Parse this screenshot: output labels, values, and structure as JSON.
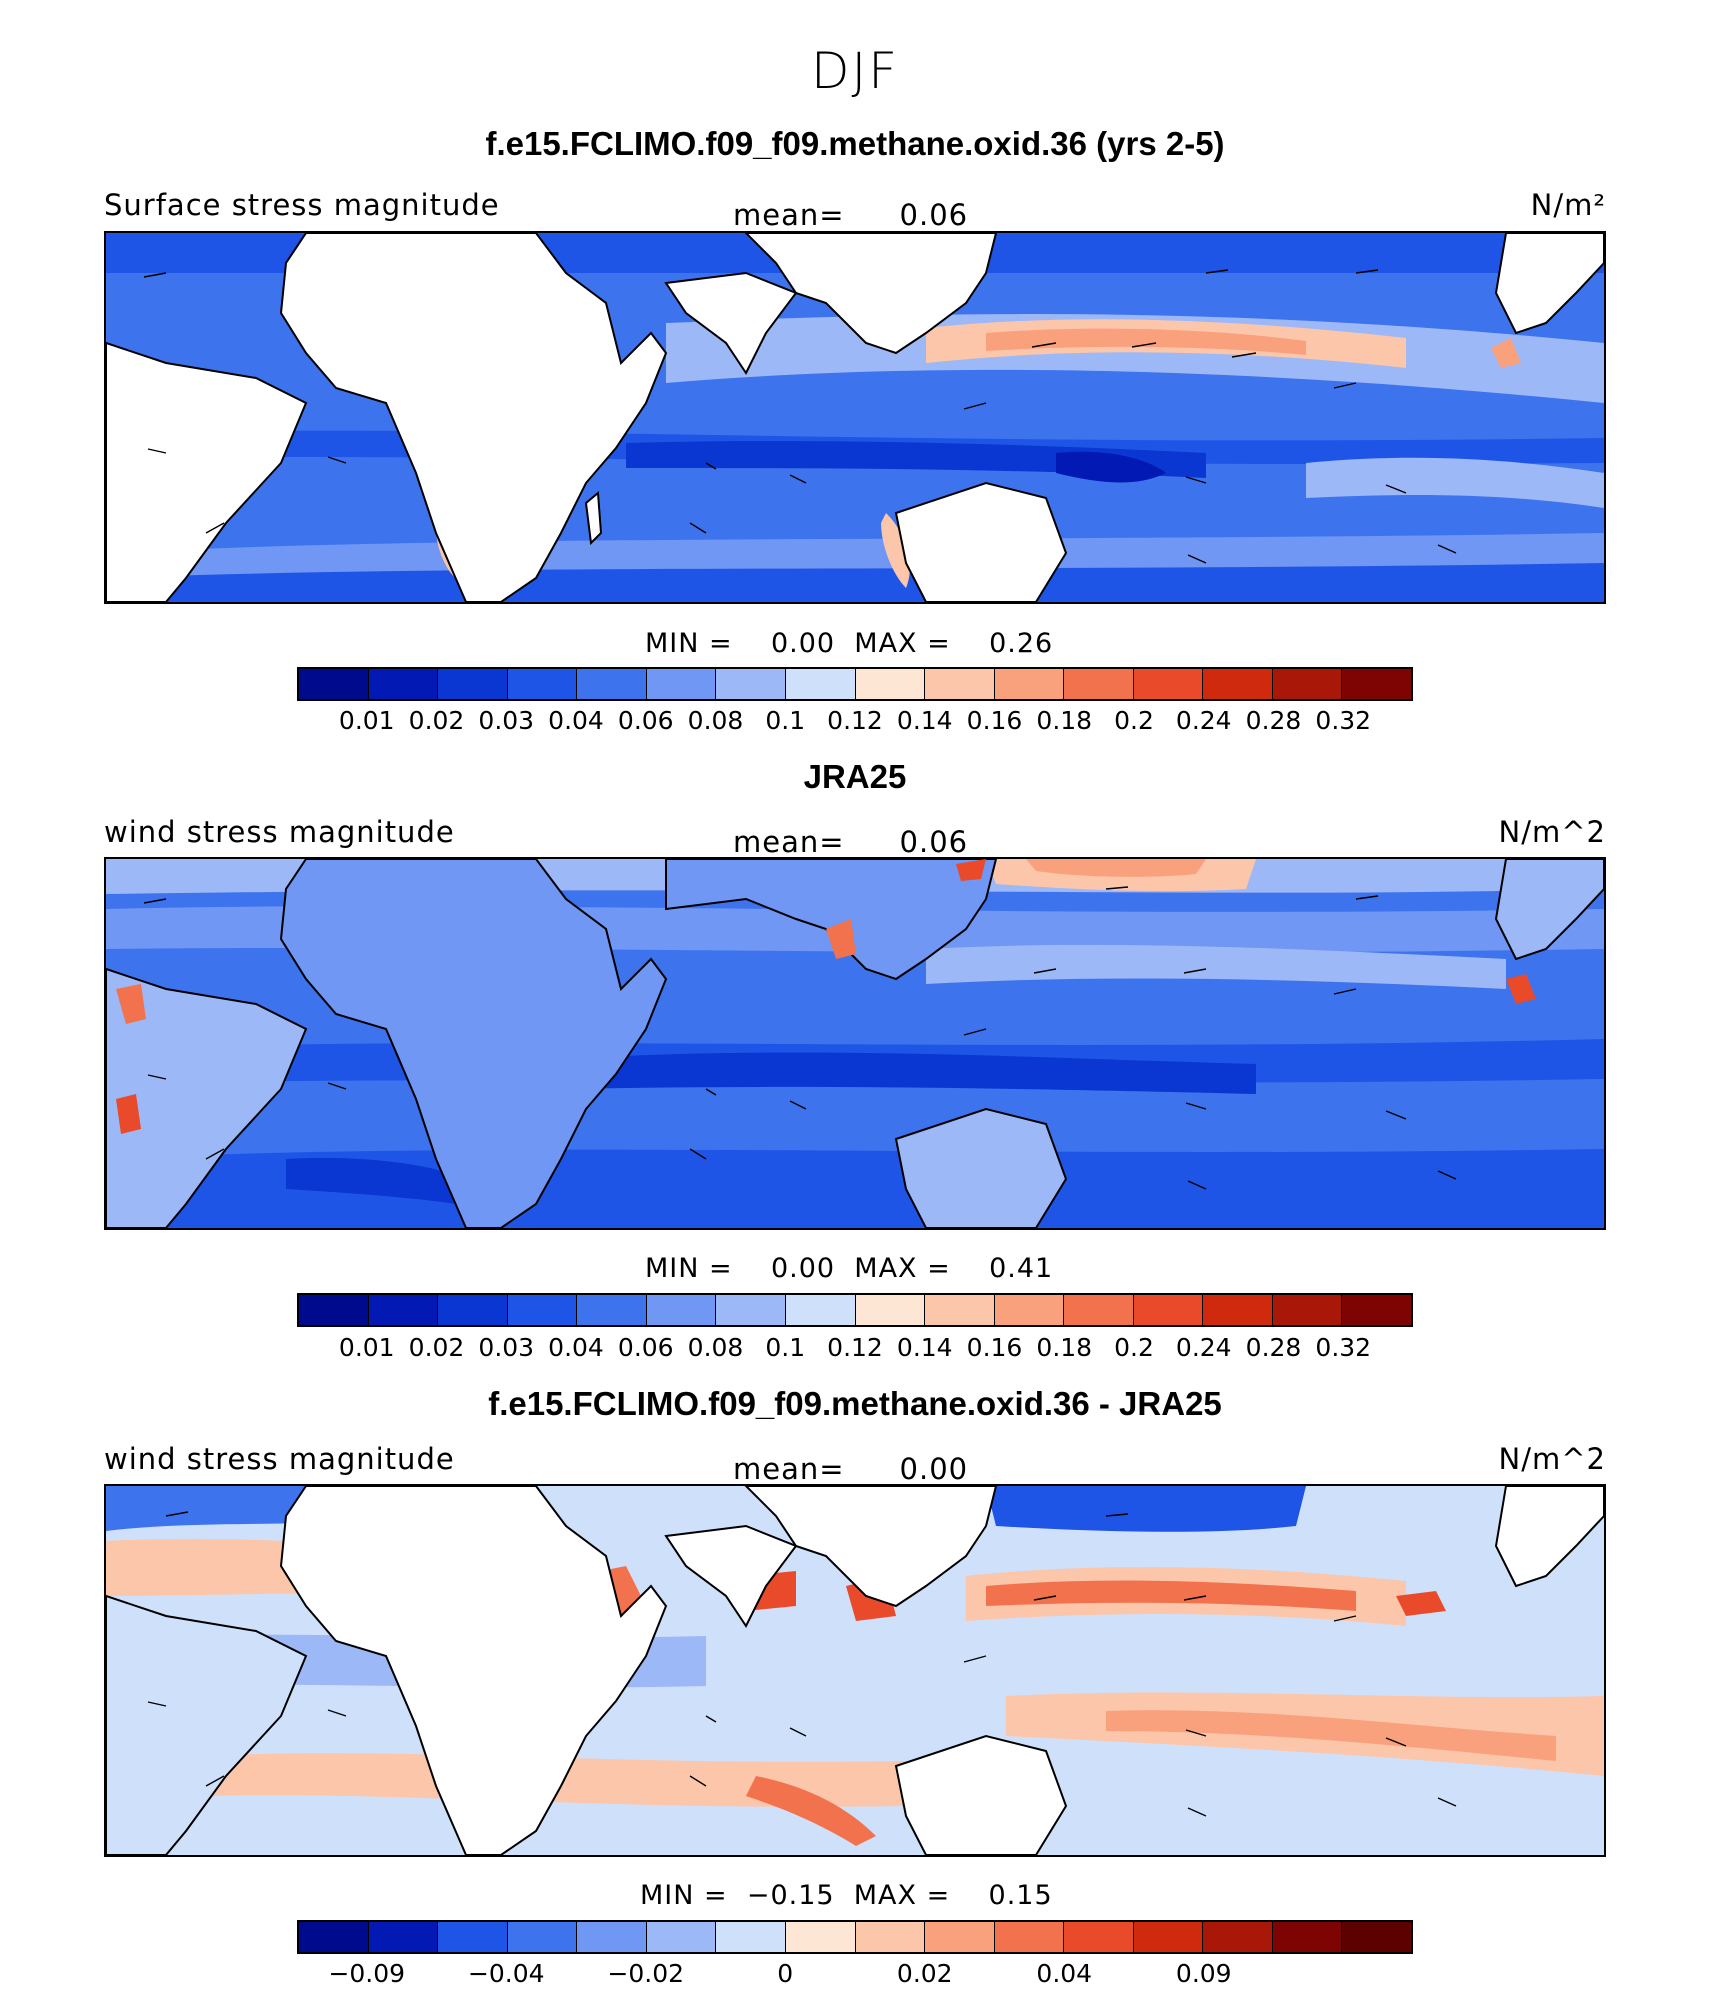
{
  "season": "DJF",
  "palette_blue_red": [
    "#000a8c",
    "#0219b3",
    "#0a36d1",
    "#1f55e6",
    "#3e73ee",
    "#6f97f3",
    "#9db8f7",
    "#cfe0fa",
    "#fde6d3",
    "#fcc6ab",
    "#f9a07c",
    "#f2724d",
    "#e84a2a",
    "#cf2a0e",
    "#a91708",
    "#7e0303"
  ],
  "panels": [
    {
      "title": "f.e15.FCLIMO.f09_f09.methane.oxid.36 (yrs 2-5)",
      "variable": "Surface stress magnitude",
      "mean_label": "mean=",
      "mean_value": "0.06",
      "units": "N/m²",
      "min_max": "MIN =    0.00  MAX =    0.26",
      "colorbar_ticks": [
        "0.01",
        "0.02",
        "0.03",
        "0.04",
        "0.06",
        "0.08",
        "0.1",
        "0.12",
        "0.14",
        "0.16",
        "0.18",
        "0.2",
        "0.24",
        "0.28",
        "0.32"
      ]
    },
    {
      "title": "JRA25",
      "variable": "wind stress magnitude",
      "mean_label": "mean=",
      "mean_value": "0.06",
      "units": "N/m^2",
      "min_max": "MIN =    0.00  MAX =    0.41",
      "colorbar_ticks": [
        "0.01",
        "0.02",
        "0.03",
        "0.04",
        "0.06",
        "0.08",
        "0.1",
        "0.12",
        "0.14",
        "0.16",
        "0.18",
        "0.2",
        "0.24",
        "0.28",
        "0.32"
      ]
    },
    {
      "title": "f.e15.FCLIMO.f09_f09.methane.oxid.36 - JRA25",
      "variable": "wind stress magnitude",
      "mean_label": "mean=",
      "mean_value": "0.00",
      "units": "N/m^2",
      "min_max": "MIN =  −0.15  MAX =    0.15",
      "colorbar_ticks": [
        "−0.09",
        "−0.04",
        "−0.02",
        "0",
        "0.02",
        "0.04",
        "0.09"
      ]
    }
  ]
}
